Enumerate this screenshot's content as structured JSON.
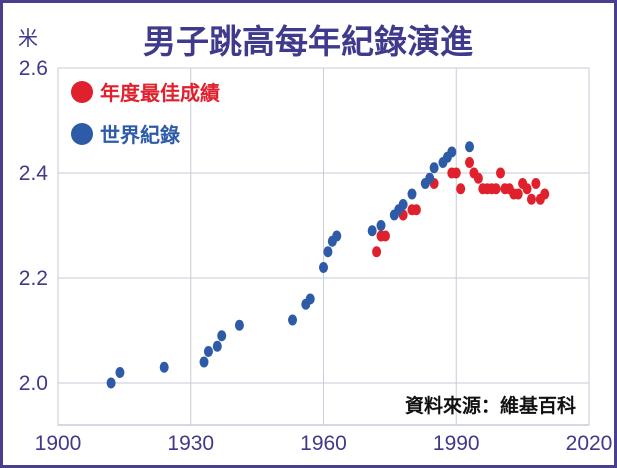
{
  "chart_data": {
    "type": "scatter",
    "title": "男子跳高每年紀錄演進",
    "ylabel": "米",
    "xlabel": "",
    "xlim": [
      1900,
      2020
    ],
    "ylim": [
      1.92,
      2.6
    ],
    "x_ticks": [
      "1900",
      "1930",
      "1960",
      "1990",
      "2020"
    ],
    "y_ticks": [
      "2.0",
      "2.2",
      "2.4",
      "2.6"
    ],
    "grid": true,
    "legend_position": "top-left",
    "source": "資料來源：維基百科",
    "series": [
      {
        "name": "年度最佳成績",
        "color": "#e0202c",
        "points": [
          [
            1972,
            2.25
          ],
          [
            1973,
            2.28
          ],
          [
            1974,
            2.28
          ],
          [
            1978,
            2.32
          ],
          [
            1980,
            2.33
          ],
          [
            1981,
            2.33
          ],
          [
            1985,
            2.38
          ],
          [
            1989,
            2.4
          ],
          [
            1990,
            2.4
          ],
          [
            1991,
            2.37
          ],
          [
            1993,
            2.42
          ],
          [
            1994,
            2.4
          ],
          [
            1995,
            2.39
          ],
          [
            1996,
            2.37
          ],
          [
            1997,
            2.37
          ],
          [
            1998,
            2.37
          ],
          [
            1999,
            2.37
          ],
          [
            2000,
            2.4
          ],
          [
            2001,
            2.37
          ],
          [
            2002,
            2.37
          ],
          [
            2003,
            2.36
          ],
          [
            2004,
            2.36
          ],
          [
            2005,
            2.38
          ],
          [
            2006,
            2.37
          ],
          [
            2007,
            2.35
          ],
          [
            2008,
            2.38
          ],
          [
            2009,
            2.35
          ],
          [
            2010,
            2.36
          ]
        ]
      },
      {
        "name": "世界紀錄",
        "color": "#2e5ba8",
        "points": [
          [
            1912,
            2.0
          ],
          [
            1914,
            2.02
          ],
          [
            1924,
            2.03
          ],
          [
            1933,
            2.04
          ],
          [
            1934,
            2.06
          ],
          [
            1936,
            2.07
          ],
          [
            1937,
            2.09
          ],
          [
            1941,
            2.11
          ],
          [
            1953,
            2.12
          ],
          [
            1956,
            2.15
          ],
          [
            1957,
            2.16
          ],
          [
            1960,
            2.22
          ],
          [
            1961,
            2.25
          ],
          [
            1962,
            2.27
          ],
          [
            1963,
            2.28
          ],
          [
            1971,
            2.29
          ],
          [
            1973,
            2.3
          ],
          [
            1976,
            2.32
          ],
          [
            1977,
            2.33
          ],
          [
            1978,
            2.34
          ],
          [
            1980,
            2.36
          ],
          [
            1983,
            2.38
          ],
          [
            1984,
            2.39
          ],
          [
            1985,
            2.41
          ],
          [
            1987,
            2.42
          ],
          [
            1988,
            2.43
          ],
          [
            1989,
            2.44
          ],
          [
            1993,
            2.45
          ]
        ]
      }
    ]
  }
}
